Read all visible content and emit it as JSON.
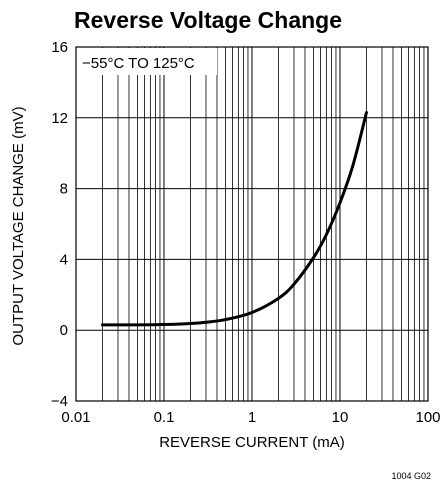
{
  "chart_data": {
    "type": "line",
    "title": "Reverse Voltage Change",
    "xlabel": "REVERSE CURRENT (mA)",
    "ylabel": "OUTPUT VOLTAGE CHANGE (mV)",
    "x_scale": "log",
    "xlim": [
      0.01,
      100
    ],
    "ylim": [
      -4,
      16
    ],
    "x_ticks": [
      0.01,
      0.1,
      1,
      10,
      100
    ],
    "x_tick_labels": [
      "0.01",
      "0.1",
      "1",
      "10",
      "100"
    ],
    "y_ticks": [
      -4,
      0,
      4,
      8,
      12,
      16
    ],
    "y_tick_labels": [
      "−4",
      "0",
      "4",
      "8",
      "12",
      "16"
    ],
    "grid": true,
    "annotation": "−55°C  TO 125°C",
    "figure_id": "1004 G02",
    "series": [
      {
        "color": "#000000",
        "x": [
          0.02,
          0.05,
          0.1,
          0.2,
          0.3,
          0.5,
          1,
          2,
          3,
          5,
          7,
          10,
          14,
          20
        ],
        "y": [
          0.3,
          0.3,
          0.32,
          0.38,
          0.45,
          0.6,
          1.0,
          1.8,
          2.6,
          4.1,
          5.4,
          7.2,
          9.3,
          12.3
        ]
      }
    ]
  }
}
